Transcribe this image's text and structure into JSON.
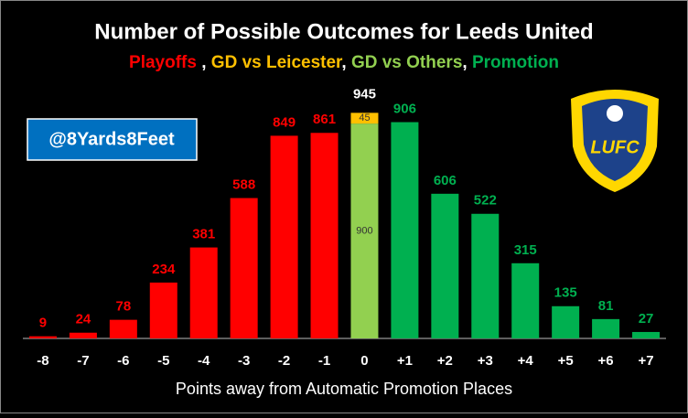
{
  "chart_data": {
    "type": "stacked_bar",
    "title": "Number of Possible Outcomes for Leeds United",
    "legend_separators": [
      " , ",
      ", ",
      ", "
    ],
    "x_label": "Points away from Automatic Promotion Places",
    "categories": [
      "-8",
      "-7",
      "-6",
      "-5",
      "-4",
      "-3",
      "-2",
      "-1",
      "0",
      "+1",
      "+2",
      "+3",
      "+4",
      "+5",
      "+6",
      "+7"
    ],
    "series": [
      {
        "name": "Playoffs",
        "color": "#ff0000",
        "values": [
          9,
          24,
          78,
          234,
          381,
          588,
          849,
          861,
          null,
          null,
          null,
          null,
          null,
          null,
          null,
          null
        ]
      },
      {
        "name": "GD vs Leicester",
        "color": "#ffc000",
        "values": [
          null,
          null,
          null,
          null,
          null,
          null,
          null,
          null,
          45,
          null,
          null,
          null,
          null,
          null,
          null,
          null
        ]
      },
      {
        "name": "GD vs Others",
        "color": "#92d050",
        "values": [
          null,
          null,
          null,
          null,
          null,
          null,
          null,
          null,
          900,
          null,
          null,
          null,
          null,
          null,
          null,
          null
        ]
      },
      {
        "name": "Promotion",
        "color": "#00b050",
        "values": [
          null,
          null,
          null,
          null,
          null,
          null,
          null,
          null,
          null,
          906,
          606,
          522,
          315,
          135,
          81,
          27
        ]
      }
    ],
    "stack_total": 945,
    "ylim": [
      0,
      1000
    ],
    "watermark": "@8Yards8Feet",
    "logo_text": "LUFC"
  }
}
